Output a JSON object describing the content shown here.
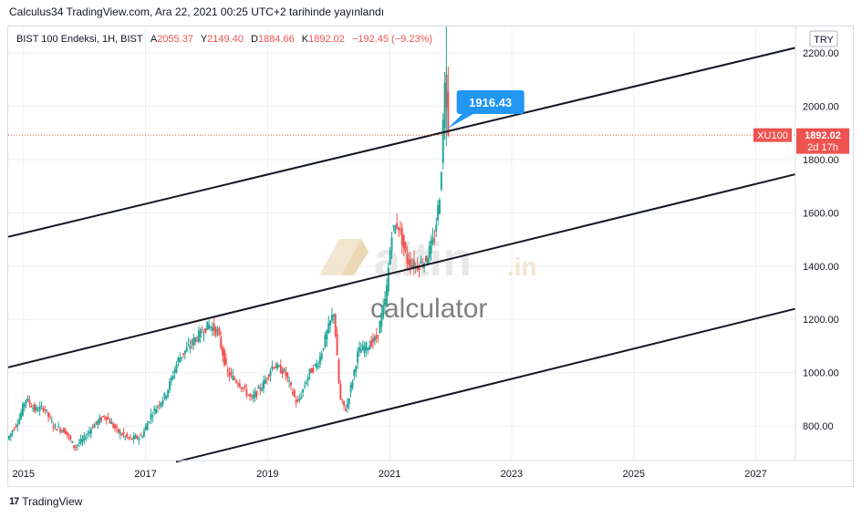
{
  "header": {
    "publish_line": "Calculus34 TradingView.com, Ara 22, 2021 00:25 UTC+2 tarihinde yayınlandı"
  },
  "footer": {
    "brand": "TradingView",
    "logo_glyph": "17"
  },
  "legend": {
    "symbol": "BIST 100 Endeksi, 1H, BIST",
    "open_label": "A",
    "open": "2055.37",
    "high_label": "Y",
    "high": "2149.40",
    "low_label": "D",
    "low": "1884.66",
    "close_label": "K",
    "close": "1892.02",
    "change": "−192.45 (−9.23%)"
  },
  "watermark": {
    "brand": "altin",
    "tld": ".in",
    "sub": "calculator"
  },
  "price_axis": {
    "currency": "TRY",
    "symbol_tag": "XU100",
    "last_price": "1892.02",
    "countdown": "2d 17h"
  },
  "callout": {
    "text": "1916.43"
  },
  "colors": {
    "up": "#26a69a",
    "down": "#ef5350",
    "tag_bg": "#ef5350",
    "callout_bg": "#2196f3",
    "channel": "#131722",
    "grid": "#eef0f3"
  },
  "chart_data": {
    "type": "candlestick",
    "title": "",
    "xlabel": "",
    "ylabel": "",
    "x_range": [
      2014.75,
      2027.65
    ],
    "ylim": [
      670,
      2300
    ],
    "x_ticks": [
      "2015",
      "2017",
      "2019",
      "2021",
      "2023",
      "2025",
      "2027"
    ],
    "y_ticks": [
      "800.00",
      "1000.00",
      "1200.00",
      "1400.00",
      "1600.00",
      "1800.00",
      "2000.00",
      "2200.00"
    ],
    "last_price": 1892.02,
    "annotation": {
      "text": "1916.43",
      "x": 2021.95,
      "y": 1916.43
    },
    "channel_lines": [
      {
        "x": [
          2014.75,
          2027.65
        ],
        "y": [
          1510,
          2220
        ]
      },
      {
        "x": [
          2014.75,
          2027.65
        ],
        "y": [
          1020,
          1745
        ]
      },
      {
        "x": [
          2017.5,
          2027.65
        ],
        "y": [
          665,
          1240
        ]
      }
    ],
    "price_path": [
      [
        2014.75,
        750
      ],
      [
        2014.95,
        830
      ],
      [
        2015.05,
        905
      ],
      [
        2015.2,
        860
      ],
      [
        2015.35,
        870
      ],
      [
        2015.5,
        800
      ],
      [
        2015.7,
        780
      ],
      [
        2015.85,
        720
      ],
      [
        2016.0,
        750
      ],
      [
        2016.15,
        800
      ],
      [
        2016.35,
        840
      ],
      [
        2016.55,
        780
      ],
      [
        2016.75,
        750
      ],
      [
        2016.95,
        760
      ],
      [
        2017.1,
        840
      ],
      [
        2017.35,
        920
      ],
      [
        2017.55,
        1050
      ],
      [
        2017.8,
        1120
      ],
      [
        2018.05,
        1180
      ],
      [
        2018.2,
        1150
      ],
      [
        2018.35,
        1000
      ],
      [
        2018.55,
        960
      ],
      [
        2018.75,
        900
      ],
      [
        2018.95,
        960
      ],
      [
        2019.1,
        1030
      ],
      [
        2019.3,
        1000
      ],
      [
        2019.5,
        880
      ],
      [
        2019.7,
        1000
      ],
      [
        2019.85,
        1040
      ],
      [
        2020.0,
        1160
      ],
      [
        2020.1,
        1230
      ],
      [
        2020.2,
        900
      ],
      [
        2020.3,
        860
      ],
      [
        2020.5,
        1080
      ],
      [
        2020.65,
        1100
      ],
      [
        2020.8,
        1130
      ],
      [
        2020.95,
        1280
      ],
      [
        2021.05,
        1530
      ],
      [
        2021.15,
        1560
      ],
      [
        2021.3,
        1420
      ],
      [
        2021.45,
        1400
      ],
      [
        2021.6,
        1420
      ],
      [
        2021.75,
        1510
      ],
      [
        2021.85,
        1700
      ],
      [
        2021.9,
        2000
      ],
      [
        2021.93,
        2180
      ],
      [
        2021.96,
        1892
      ]
    ]
  }
}
